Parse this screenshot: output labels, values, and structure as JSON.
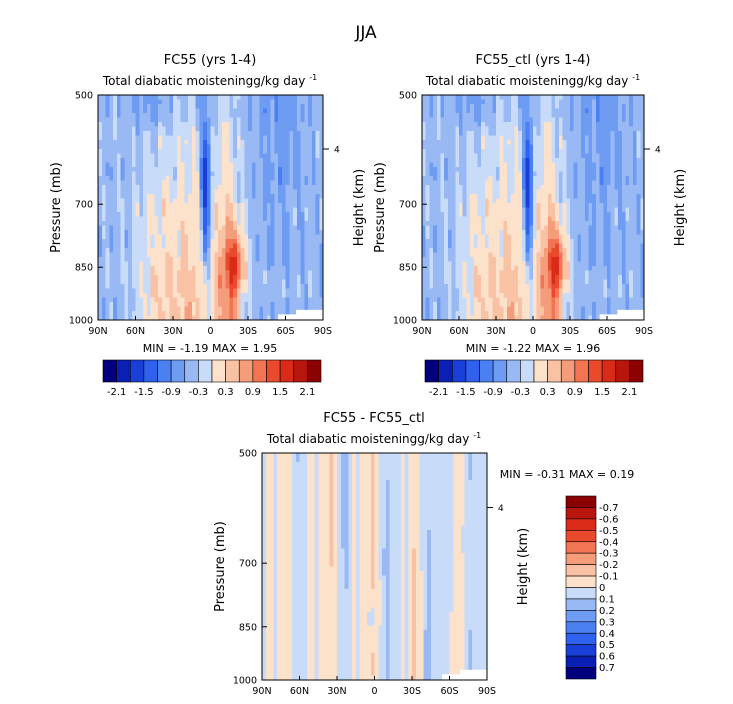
{
  "page_title": "JJA",
  "chart_data": [
    {
      "id": "p1",
      "type": "heatmap",
      "title": "FC55 (yrs 1-4)",
      "subtitle": "Total diabatic moistening",
      "units": "g/kg day",
      "units_exp": "-1",
      "ylabel": "Pressure (mb)",
      "y2label": "Height (km)",
      "y2ticks": [
        "4"
      ],
      "xticks": [
        "90N",
        "60N",
        "30N",
        "0",
        "30S",
        "60S",
        "90S"
      ],
      "yticks": [
        "500",
        "700",
        "850",
        "1000"
      ],
      "yticks_values": [
        500,
        700,
        850,
        1000
      ],
      "ylim": [
        1000,
        500
      ],
      "xlim": [
        90,
        -90
      ],
      "stats": {
        "min_label": "MIN =",
        "min": "-1.19",
        "max_label": "MAX =",
        "max": "1.95"
      },
      "colorbar": {
        "orientation": "horizontal",
        "levels": [
          -2.4,
          -2.1,
          -1.8,
          -1.5,
          -1.2,
          -0.9,
          -0.6,
          -0.3,
          0,
          0.3,
          0.6,
          0.9,
          1.2,
          1.5,
          1.8,
          2.1,
          2.4
        ],
        "labels": [
          "-2.1",
          "-1.5",
          "-0.9",
          "-0.3",
          "0.3",
          "0.9",
          "1.5",
          "2.1"
        ],
        "colors": [
          "#00007f",
          "#0a1fb4",
          "#1a3fd9",
          "#2f61ee",
          "#4a80f2",
          "#6f9cf3",
          "#98b9f4",
          "#c8dcfa",
          "#fde2cb",
          "#f9c2a4",
          "#f59d7b",
          "#f27452",
          "#ea4a2c",
          "#d92b18",
          "#b8150c",
          "#8b0000"
        ]
      },
      "blobs": [
        {
          "lat": 8,
          "p": 960,
          "rx": 22,
          "rp": 80,
          "level": 0.5
        },
        {
          "lat": -22,
          "p": 870,
          "rx": 14,
          "rp": 90,
          "level": 0.7
        }
      ]
    },
    {
      "id": "p2",
      "type": "heatmap",
      "title": "FC55_ctl (yrs 1-4)",
      "subtitle": "Total diabatic moistening",
      "units": "g/kg day",
      "units_exp": "-1",
      "ylabel": "Pressure (mb)",
      "y2label": "Height (km)",
      "y2ticks": [
        "4"
      ],
      "xticks": [
        "90N",
        "60N",
        "30N",
        "0",
        "30S",
        "60S",
        "90S"
      ],
      "yticks": [
        "500",
        "700",
        "850",
        "1000"
      ],
      "yticks_values": [
        500,
        700,
        850,
        1000
      ],
      "ylim": [
        1000,
        500
      ],
      "xlim": [
        90,
        -90
      ],
      "stats": {
        "min_label": "MIN =",
        "min": "-1.22",
        "max_label": "MAX =",
        "max": "1.96"
      },
      "colorbar": {
        "orientation": "horizontal",
        "levels": [
          -2.4,
          -2.1,
          -1.8,
          -1.5,
          -1.2,
          -0.9,
          -0.6,
          -0.3,
          0,
          0.3,
          0.6,
          0.9,
          1.2,
          1.5,
          1.8,
          2.1,
          2.4
        ],
        "labels": [
          "-2.1",
          "-1.5",
          "-0.9",
          "-0.3",
          "0.3",
          "0.9",
          "1.5",
          "2.1"
        ],
        "colors": [
          "#00007f",
          "#0a1fb4",
          "#1a3fd9",
          "#2f61ee",
          "#4a80f2",
          "#6f9cf3",
          "#98b9f4",
          "#c8dcfa",
          "#fde2cb",
          "#f9c2a4",
          "#f59d7b",
          "#f27452",
          "#ea4a2c",
          "#d92b18",
          "#b8150c",
          "#8b0000"
        ]
      },
      "blobs": [
        {
          "lat": 8,
          "p": 960,
          "rx": 22,
          "rp": 80,
          "level": 0.5
        },
        {
          "lat": -22,
          "p": 870,
          "rx": 14,
          "rp": 90,
          "level": 0.7
        }
      ]
    },
    {
      "id": "p3",
      "type": "heatmap",
      "title": "FC55 - FC55_ctl",
      "subtitle": "Total diabatic moistening",
      "units": "g/kg day",
      "units_exp": "-1",
      "ylabel": "Pressure (mb)",
      "y2label": "Height (km)",
      "y2ticks": [
        "4"
      ],
      "xticks": [
        "90N",
        "60N",
        "30N",
        "0",
        "30S",
        "60S",
        "90S"
      ],
      "yticks": [
        "500",
        "700",
        "850",
        "1000"
      ],
      "yticks_values": [
        500,
        700,
        850,
        1000
      ],
      "ylim": [
        1000,
        500
      ],
      "xlim": [
        90,
        -90
      ],
      "stats": {
        "min_label": "MIN =",
        "min": "-0.31",
        "max_label": "MAX =",
        "max": "0.19"
      },
      "colorbar": {
        "orientation": "vertical",
        "levels": [
          -0.8,
          -0.7,
          -0.6,
          -0.5,
          -0.4,
          -0.3,
          -0.2,
          -0.1,
          0,
          0.1,
          0.2,
          0.3,
          0.4,
          0.5,
          0.6,
          0.7,
          0.8
        ],
        "labels": [
          "-0.7",
          "-0.6",
          "-0.5",
          "-0.4",
          "-0.3",
          "-0.2",
          "-0.1",
          "0",
          "0.1",
          "0.2",
          "0.3",
          "0.4",
          "0.5",
          "0.6",
          "0.7"
        ],
        "colors": [
          "#00007f",
          "#0a1fb4",
          "#1a3fd9",
          "#2f61ee",
          "#4a80f2",
          "#6f9cf3",
          "#98b9f4",
          "#c8dcfa",
          "#fde2cb",
          "#f9c2a4",
          "#f59d7b",
          "#f27452",
          "#ea4a2c",
          "#d92b18",
          "#b8150c",
          "#8b0000"
        ]
      }
    }
  ]
}
